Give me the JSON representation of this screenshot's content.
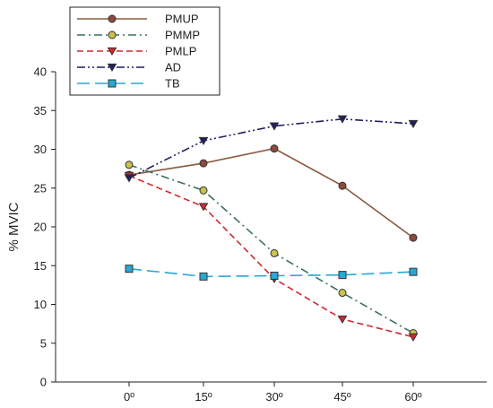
{
  "chart_data": {
    "type": "line",
    "title": "",
    "xlabel": "",
    "ylabel": "% MVIC",
    "categories": [
      "0º",
      "15º",
      "30º",
      "45º",
      "60º"
    ],
    "ylim": [
      0,
      40
    ],
    "yticks": [
      "0",
      "5",
      "10",
      "15",
      "20",
      "25",
      "30",
      "35",
      "40"
    ],
    "grid": false,
    "legend_position": "top-left",
    "series": [
      {
        "name": "PMUP",
        "values": [
          26.7,
          28.2,
          30.1,
          25.3,
          18.6
        ],
        "color": "#8B5A3C",
        "marker": "circle",
        "marker_fill": "#8B4A3C",
        "dash": "solid"
      },
      {
        "name": "PMMP",
        "values": [
          28.0,
          24.7,
          16.6,
          11.5,
          6.3
        ],
        "color": "#3E6E66",
        "marker": "circle",
        "marker_fill": "#C9C24E",
        "dash": "dashdot"
      },
      {
        "name": "PMLP",
        "values": [
          26.6,
          22.6,
          13.3,
          8.1,
          5.8
        ],
        "color": "#D0282F",
        "marker": "triangle-down",
        "marker_fill": "#D0282F",
        "dash": "dashed"
      },
      {
        "name": "AD",
        "values": [
          26.3,
          31.1,
          33.0,
          33.9,
          33.3
        ],
        "color": "#1F1F5E",
        "marker": "triangle-down",
        "marker_fill": "#1F1F5E",
        "dash": "dashdotdot"
      },
      {
        "name": "TB",
        "values": [
          14.6,
          13.6,
          13.7,
          13.8,
          14.2
        ],
        "color": "#29A7D6",
        "marker": "square",
        "marker_fill": "#29A7D6",
        "dash": "longdash"
      }
    ]
  }
}
